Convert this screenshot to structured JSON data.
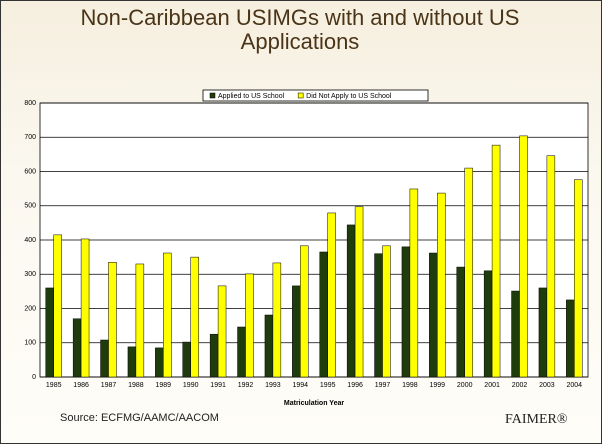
{
  "chart_data": {
    "type": "bar",
    "title": "Non-Caribbean USIMGs with and without US Applications",
    "x_label": "Matriculation Year",
    "source": "Source: ECFMG/AAMC/AACOM",
    "footer": "FAIMER®",
    "categories": [
      "1985",
      "1986",
      "1987",
      "1988",
      "1989",
      "1990",
      "1991",
      "1992",
      "1993",
      "1994",
      "1995",
      "1996",
      "1997",
      "1998",
      "1999",
      "2000",
      "2001",
      "2002",
      "2003",
      "2004"
    ],
    "series": [
      {
        "name": "Applied to US School",
        "color": "#1f3d0c",
        "values": [
          260,
          170,
          108,
          88,
          85,
          102,
          125,
          146,
          181,
          266,
          365,
          444,
          360,
          380,
          362,
          321,
          310,
          251,
          260,
          225
        ]
      },
      {
        "name": "Did Not Apply to US School",
        "color": "#ffff00",
        "values": [
          415,
          403,
          335,
          330,
          362,
          350,
          266,
          301,
          333,
          383,
          479,
          497,
          383,
          549,
          537,
          610,
          677,
          704,
          646,
          576
        ]
      }
    ],
    "ylim": [
      0,
      800
    ],
    "yticks": [
      0,
      100,
      200,
      300,
      400,
      500,
      600,
      700,
      800
    ],
    "grid": true
  }
}
